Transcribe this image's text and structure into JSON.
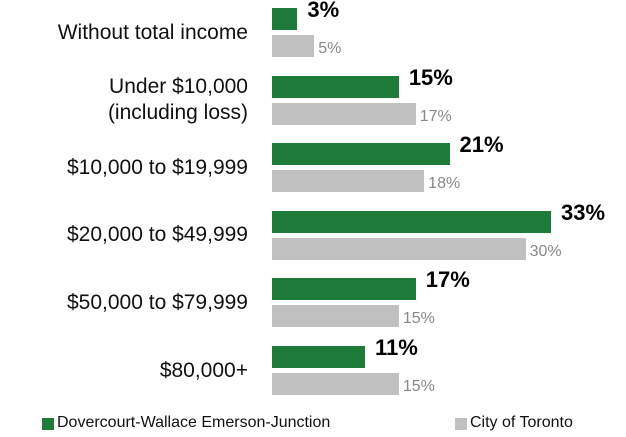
{
  "chart_data": {
    "type": "bar",
    "orientation": "horizontal",
    "categories": [
      "Without total income",
      "Under $10,000\n(including loss)",
      "$10,000 to $19,999",
      "$20,000 to $49,999",
      "$50,000 to $79,999",
      "$80,000+"
    ],
    "series": [
      {
        "name": "Dovercourt-Wallace Emerson-Junction",
        "color": "#1e7b3a",
        "values": [
          3,
          15,
          21,
          33,
          17,
          11
        ],
        "value_labels": [
          "3%",
          "15%",
          "21%",
          "33%",
          "17%",
          "11%"
        ]
      },
      {
        "name": "City of Toronto",
        "color": "#c0c0c0",
        "values": [
          5,
          17,
          18,
          30,
          15,
          15
        ],
        "value_labels": [
          "5%",
          "17%",
          "18%",
          "30%",
          "15%",
          "15%"
        ]
      }
    ],
    "legend": "bottom"
  }
}
